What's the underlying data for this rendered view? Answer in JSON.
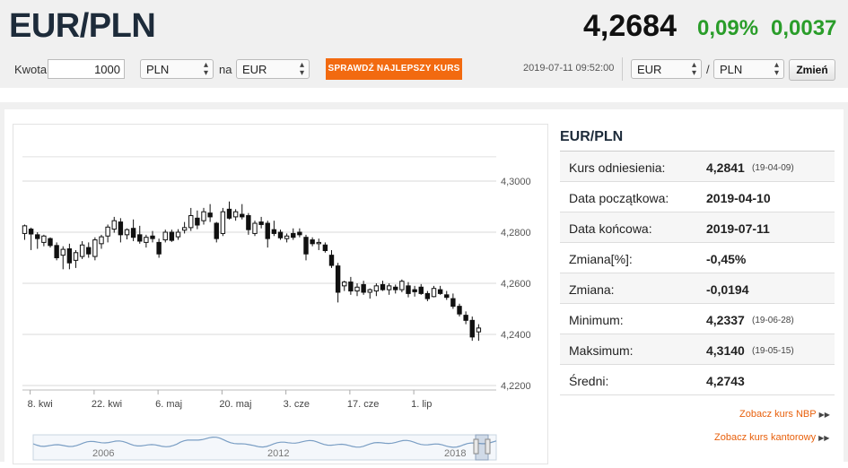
{
  "header": {
    "pair": "EUR/PLN",
    "rate": "4,2684",
    "change_pct": "0,09%",
    "change_abs": "0,0037"
  },
  "converter": {
    "amount_label": "Kwota",
    "amount_value": "1000",
    "from_currency": "PLN",
    "on_label": "na",
    "to_currency": "EUR",
    "best_rate_button": "SPRAWDŹ NAJLEPSZY KURS",
    "timestamp": "2019-07-11 09:52:00",
    "pair_base": "EUR",
    "slash": "/",
    "pair_quote": "PLN",
    "change_button": "Zmień"
  },
  "side": {
    "title": "EUR/PLN",
    "rows": [
      {
        "label": "Kurs odniesienia:",
        "value": "4,2841",
        "date": "(19-04-09)"
      },
      {
        "label": "Data początkowa:",
        "value": "2019-04-10",
        "date": ""
      },
      {
        "label": "Data końcowa:",
        "value": "2019-07-11",
        "date": ""
      },
      {
        "label": "Zmiana[%]:",
        "value": "-0,45%",
        "date": ""
      },
      {
        "label": "Zmiana:",
        "value": "-0,0194",
        "date": ""
      },
      {
        "label": "Minimum:",
        "value": "4,2337",
        "date": "(19-06-28)"
      },
      {
        "label": "Maksimum:",
        "value": "4,3140",
        "date": "(19-05-15)"
      },
      {
        "label": "Średni:",
        "value": "4,2743",
        "date": ""
      }
    ],
    "link_nbp": "Zobacz kurs NBP",
    "link_kantor": "Zobacz kurs kantorowy"
  },
  "colors": {
    "accent_orange": "#f26a10",
    "positive_green": "#2a9d2a",
    "title_navy": "#1d2b3a",
    "navigator_line": "#7a9ec4"
  },
  "chart_data": {
    "type": "candlestick",
    "ylim": [
      4.22,
      4.3095
    ],
    "y_ticks": [
      "4,3000",
      "4,2800",
      "4,2600",
      "4,2400",
      "4,2200"
    ],
    "y_tick_values": [
      4.3,
      4.28,
      4.26,
      4.24,
      4.22
    ],
    "x_ticks": [
      "8. kwi",
      "22. kwi",
      "6. maj",
      "20. maj",
      "3. cze",
      "17. cze",
      "1. lip"
    ],
    "x_tick_index": [
      1,
      11,
      21,
      31,
      41,
      51,
      61
    ],
    "candles": [
      {
        "o": 4.2795,
        "h": 4.283,
        "l": 4.277,
        "c": 4.2825
      },
      {
        "o": 4.2812,
        "h": 4.2818,
        "l": 4.273,
        "c": 4.2793
      },
      {
        "o": 4.279,
        "h": 4.28,
        "l": 4.2735,
        "c": 4.2775
      },
      {
        "o": 4.276,
        "h": 4.279,
        "l": 4.2745,
        "c": 4.2785
      },
      {
        "o": 4.2775,
        "h": 4.278,
        "l": 4.274,
        "c": 4.2748
      },
      {
        "o": 4.2748,
        "h": 4.276,
        "l": 4.269,
        "c": 4.27
      },
      {
        "o": 4.271,
        "h": 4.2745,
        "l": 4.2655,
        "c": 4.2733
      },
      {
        "o": 4.2735,
        "h": 4.2755,
        "l": 4.2655,
        "c": 4.268
      },
      {
        "o": 4.269,
        "h": 4.273,
        "l": 4.266,
        "c": 4.272
      },
      {
        "o": 4.2705,
        "h": 4.2765,
        "l": 4.2695,
        "c": 4.275
      },
      {
        "o": 4.274,
        "h": 4.276,
        "l": 4.27,
        "c": 4.2715
      },
      {
        "o": 4.2705,
        "h": 4.278,
        "l": 4.269,
        "c": 4.277
      },
      {
        "o": 4.2755,
        "h": 4.279,
        "l": 4.2735,
        "c": 4.2782
      },
      {
        "o": 4.2785,
        "h": 4.283,
        "l": 4.276,
        "c": 4.282
      },
      {
        "o": 4.2812,
        "h": 4.286,
        "l": 4.2798,
        "c": 4.2845
      },
      {
        "o": 4.284,
        "h": 4.2855,
        "l": 4.276,
        "c": 4.279
      },
      {
        "o": 4.279,
        "h": 4.2815,
        "l": 4.2772,
        "c": 4.281
      },
      {
        "o": 4.2815,
        "h": 4.285,
        "l": 4.2765,
        "c": 4.278
      },
      {
        "o": 4.279,
        "h": 4.2825,
        "l": 4.2755,
        "c": 4.2765
      },
      {
        "o": 4.276,
        "h": 4.279,
        "l": 4.274,
        "c": 4.278
      },
      {
        "o": 4.2785,
        "h": 4.2805,
        "l": 4.276,
        "c": 4.2775
      },
      {
        "o": 4.276,
        "h": 4.2775,
        "l": 4.27,
        "c": 4.2715
      },
      {
        "o": 4.277,
        "h": 4.281,
        "l": 4.276,
        "c": 4.28
      },
      {
        "o": 4.28,
        "h": 4.281,
        "l": 4.2762,
        "c": 4.2768
      },
      {
        "o": 4.2782,
        "h": 4.2812,
        "l": 4.277,
        "c": 4.28
      },
      {
        "o": 4.2808,
        "h": 4.284,
        "l": 4.2795,
        "c": 4.2818
      },
      {
        "o": 4.2818,
        "h": 4.2895,
        "l": 4.2805,
        "c": 4.2865
      },
      {
        "o": 4.2855,
        "h": 4.2885,
        "l": 4.2812,
        "c": 4.2828
      },
      {
        "o": 4.2845,
        "h": 4.2895,
        "l": 4.283,
        "c": 4.288
      },
      {
        "o": 4.2875,
        "h": 4.291,
        "l": 4.284,
        "c": 4.286
      },
      {
        "o": 4.2835,
        "h": 4.284,
        "l": 4.276,
        "c": 4.2775
      },
      {
        "o": 4.2795,
        "h": 4.2895,
        "l": 4.2785,
        "c": 4.288
      },
      {
        "o": 4.289,
        "h": 4.292,
        "l": 4.285,
        "c": 4.2855
      },
      {
        "o": 4.286,
        "h": 4.289,
        "l": 4.2845,
        "c": 4.288
      },
      {
        "o": 4.287,
        "h": 4.291,
        "l": 4.285,
        "c": 4.286
      },
      {
        "o": 4.2865,
        "h": 4.2875,
        "l": 4.279,
        "c": 4.281
      },
      {
        "o": 4.2795,
        "h": 4.2845,
        "l": 4.2785,
        "c": 4.2835
      },
      {
        "o": 4.284,
        "h": 4.286,
        "l": 4.2815,
        "c": 4.283
      },
      {
        "o": 4.2835,
        "h": 4.2845,
        "l": 4.274,
        "c": 4.2775
      },
      {
        "o": 4.281,
        "h": 4.2845,
        "l": 4.2785,
        "c": 4.2795
      },
      {
        "o": 4.28,
        "h": 4.281,
        "l": 4.277,
        "c": 4.2778
      },
      {
        "o": 4.2775,
        "h": 4.2795,
        "l": 4.276,
        "c": 4.2785
      },
      {
        "o": 4.2795,
        "h": 4.2815,
        "l": 4.277,
        "c": 4.278
      },
      {
        "o": 4.28,
        "h": 4.2815,
        "l": 4.278,
        "c": 4.279
      },
      {
        "o": 4.278,
        "h": 4.279,
        "l": 4.269,
        "c": 4.2715
      },
      {
        "o": 4.277,
        "h": 4.278,
        "l": 4.2745,
        "c": 4.2755
      },
      {
        "o": 4.2755,
        "h": 4.2775,
        "l": 4.273,
        "c": 4.276
      },
      {
        "o": 4.275,
        "h": 4.276,
        "l": 4.272,
        "c": 4.2728
      },
      {
        "o": 4.271,
        "h": 4.273,
        "l": 4.266,
        "c": 4.267
      },
      {
        "o": 4.2668,
        "h": 4.268,
        "l": 4.2525,
        "c": 4.2565
      },
      {
        "o": 4.259,
        "h": 4.261,
        "l": 4.257,
        "c": 4.2605
      },
      {
        "o": 4.2605,
        "h": 4.2625,
        "l": 4.2555,
        "c": 4.257
      },
      {
        "o": 4.257,
        "h": 4.26,
        "l": 4.255,
        "c": 4.2585
      },
      {
        "o": 4.2595,
        "h": 4.261,
        "l": 4.2555,
        "c": 4.2565
      },
      {
        "o": 4.2565,
        "h": 4.258,
        "l": 4.254,
        "c": 4.2575
      },
      {
        "o": 4.257,
        "h": 4.26,
        "l": 4.255,
        "c": 4.259
      },
      {
        "o": 4.2595,
        "h": 4.261,
        "l": 4.257,
        "c": 4.2575
      },
      {
        "o": 4.2575,
        "h": 4.26,
        "l": 4.2555,
        "c": 4.259
      },
      {
        "o": 4.2585,
        "h": 4.2595,
        "l": 4.256,
        "c": 4.2575
      },
      {
        "o": 4.2575,
        "h": 4.2615,
        "l": 4.2565,
        "c": 4.2608
      },
      {
        "o": 4.259,
        "h": 4.2605,
        "l": 4.2545,
        "c": 4.256
      },
      {
        "o": 4.2575,
        "h": 4.259,
        "l": 4.2548,
        "c": 4.2567
      },
      {
        "o": 4.2585,
        "h": 4.2597,
        "l": 4.2555,
        "c": 4.256
      },
      {
        "o": 4.256,
        "h": 4.257,
        "l": 4.253,
        "c": 4.254
      },
      {
        "o": 4.2548,
        "h": 4.259,
        "l": 4.2545,
        "c": 4.258
      },
      {
        "o": 4.2575,
        "h": 4.259,
        "l": 4.2555,
        "c": 4.256
      },
      {
        "o": 4.2555,
        "h": 4.257,
        "l": 4.2535,
        "c": 4.2545
      },
      {
        "o": 4.254,
        "h": 4.256,
        "l": 4.25,
        "c": 4.251
      },
      {
        "o": 4.251,
        "h": 4.252,
        "l": 4.247,
        "c": 4.248
      },
      {
        "o": 4.2475,
        "h": 4.249,
        "l": 4.244,
        "c": 4.2455
      },
      {
        "o": 4.2455,
        "h": 4.247,
        "l": 4.2375,
        "c": 4.239
      },
      {
        "o": 4.241,
        "h": 4.244,
        "l": 4.2375,
        "c": 4.2425
      }
    ],
    "navigator": {
      "x_labels": [
        "2006",
        "2012",
        "2018"
      ]
    }
  }
}
